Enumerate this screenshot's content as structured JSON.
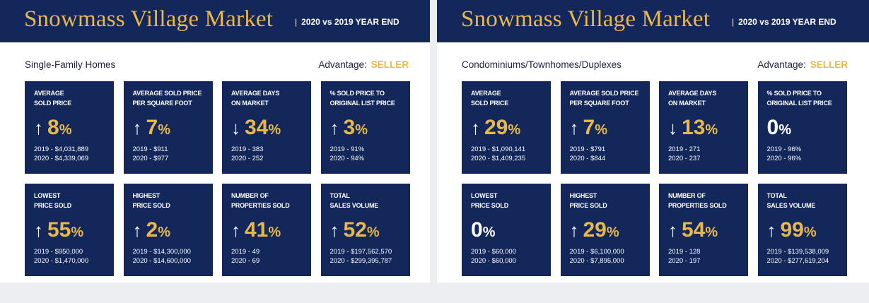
{
  "panels": [
    {
      "title": "Snowmass Village Market",
      "subtitle": "2020 vs 2019 YEAR END",
      "category": "Single-Family Homes",
      "advantage_label": "Advantage:",
      "advantage_value": "SELLER",
      "cards": [
        {
          "label": "AVERAGE\nSOLD PRICE",
          "direction": "up",
          "value": "8",
          "unit": "%",
          "line1": "2019 - $4,031,889",
          "line2": "2020 - $4,339,069"
        },
        {
          "label": "AVERAGE SOLD PRICE\nPER SQUARE FOOT",
          "direction": "up",
          "value": "7",
          "unit": "%",
          "line1": "2019 - $911",
          "line2": "2020 - $977"
        },
        {
          "label": "AVERAGE DAYS\nON MARKET",
          "direction": "down",
          "value": "34",
          "unit": "%",
          "line1": "2019 - 383",
          "line2": "2020 - 252"
        },
        {
          "label": "% SOLD PRICE TO\nORIGINAL LIST PRICE",
          "direction": "up",
          "value": "3",
          "unit": "%",
          "line1": "2019 - 91%",
          "line2": "2020 - 94%"
        },
        {
          "label": "LOWEST\nPRICE SOLD",
          "direction": "up",
          "value": "55",
          "unit": "%",
          "line1": "2019 - $950,000",
          "line2": "2020 - $1,470,000"
        },
        {
          "label": "HIGHEST\nPRICE SOLD",
          "direction": "up",
          "value": "2",
          "unit": "%",
          "line1": "2019 - $14,300,000",
          "line2": "2020 - $14,600,000"
        },
        {
          "label": "NUMBER OF\nPROPERTIES SOLD",
          "direction": "up",
          "value": "41",
          "unit": "%",
          "line1": "2019 - 49",
          "line2": "2020 - 69"
        },
        {
          "label": "TOTAL\nSALES VOLUME",
          "direction": "up",
          "value": "52",
          "unit": "%",
          "line1": "2019 - $197,562,570",
          "line2": "2020 - $299,395,787"
        }
      ]
    },
    {
      "title": "Snowmass Village Market",
      "subtitle": "2020 vs 2019 YEAR END",
      "category": "Condominiums/Townhomes/Duplexes",
      "advantage_label": "Advantage:",
      "advantage_value": "SELLER",
      "cards": [
        {
          "label": "AVERAGE\nSOLD PRICE",
          "direction": "up",
          "value": "29",
          "unit": "%",
          "line1": "2019 - $1,090,141",
          "line2": "2020 - $1,409,235"
        },
        {
          "label": "AVERAGE SOLD PRICE\nPER SQUARE FOOT",
          "direction": "up",
          "value": "7",
          "unit": "%",
          "line1": "2019 - $791",
          "line2": "2020 - $844"
        },
        {
          "label": "AVERAGE DAYS\nON MARKET",
          "direction": "down",
          "value": "13",
          "unit": "%",
          "line1": "2019 - 271",
          "line2": "2020 - 237"
        },
        {
          "label": "% SOLD PRICE TO\nORIGINAL LIST PRICE",
          "direction": "none",
          "value": "0",
          "unit": "%",
          "line1": "2019 - 96%",
          "line2": "2020 - 96%"
        },
        {
          "label": "LOWEST\nPRICE SOLD",
          "direction": "none",
          "value": "0",
          "unit": "%",
          "line1": "2019 - $60,000",
          "line2": "2020 - $60,000"
        },
        {
          "label": "HIGHEST\nPRICE SOLD",
          "direction": "up",
          "value": "29",
          "unit": "%",
          "line1": "2019 - $6,100,000",
          "line2": "2020 - $7,895,000"
        },
        {
          "label": "NUMBER OF\nPROPERTIES SOLD",
          "direction": "up",
          "value": "54",
          "unit": "%",
          "line1": "2019 - 128",
          "line2": "2020 - 197"
        },
        {
          "label": "TOTAL\nSALES VOLUME",
          "direction": "up",
          "value": "99",
          "unit": "%",
          "line1": "2019 - $139,538,009",
          "line2": "2020 - $277,619,204"
        }
      ]
    }
  ],
  "colors": {
    "navy": "#13275a",
    "gold": "#e8b94a"
  },
  "icons": {
    "up": "arrow-up-icon",
    "down": "arrow-down-icon"
  }
}
